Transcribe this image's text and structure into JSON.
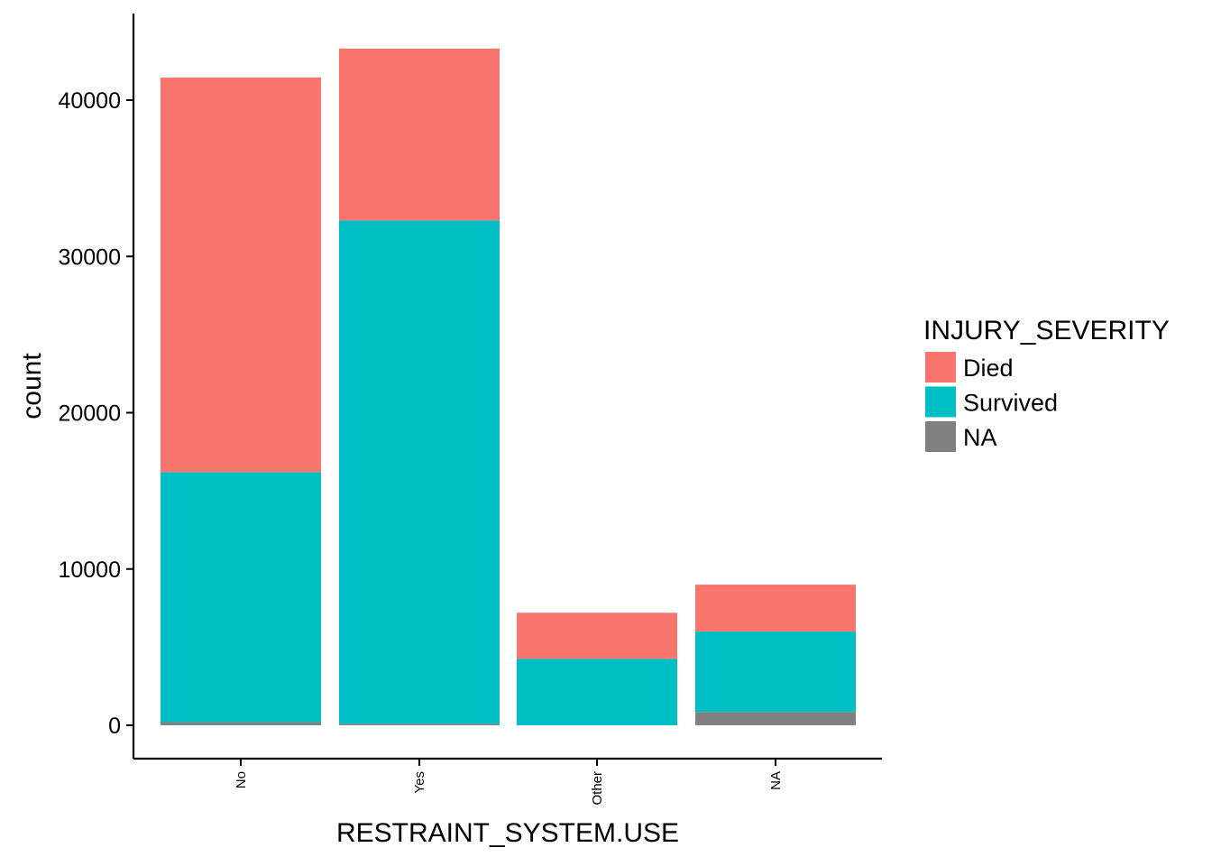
{
  "chart_data": {
    "type": "bar",
    "stacked": true,
    "title": "",
    "xlabel": "RESTRAINT_SYSTEM.USE",
    "ylabel": "count",
    "categories": [
      "No",
      "Yes",
      "Other",
      "NA"
    ],
    "ylim": [
      0,
      45000
    ],
    "yticks": [
      0,
      10000,
      20000,
      30000,
      40000
    ],
    "ytick_labels": [
      "0",
      "10000",
      "20000",
      "30000",
      "40000"
    ],
    "series": [
      {
        "name": "NA",
        "color": "#808080",
        "values": [
          200,
          100,
          0,
          850
        ]
      },
      {
        "name": "Survived",
        "color": "#00BFC4",
        "values": [
          16000,
          32200,
          4250,
          5150
        ]
      },
      {
        "name": "Died",
        "color": "#F8766D",
        "values": [
          25250,
          11000,
          2950,
          3000
        ]
      }
    ],
    "legend": {
      "title": "INJURY_SEVERITY",
      "position": "right",
      "entries": [
        {
          "label": "Died",
          "color": "#F8766D"
        },
        {
          "label": "Survived",
          "color": "#00BFC4"
        },
        {
          "label": "NA",
          "color": "#808080"
        }
      ]
    },
    "grid": false
  }
}
